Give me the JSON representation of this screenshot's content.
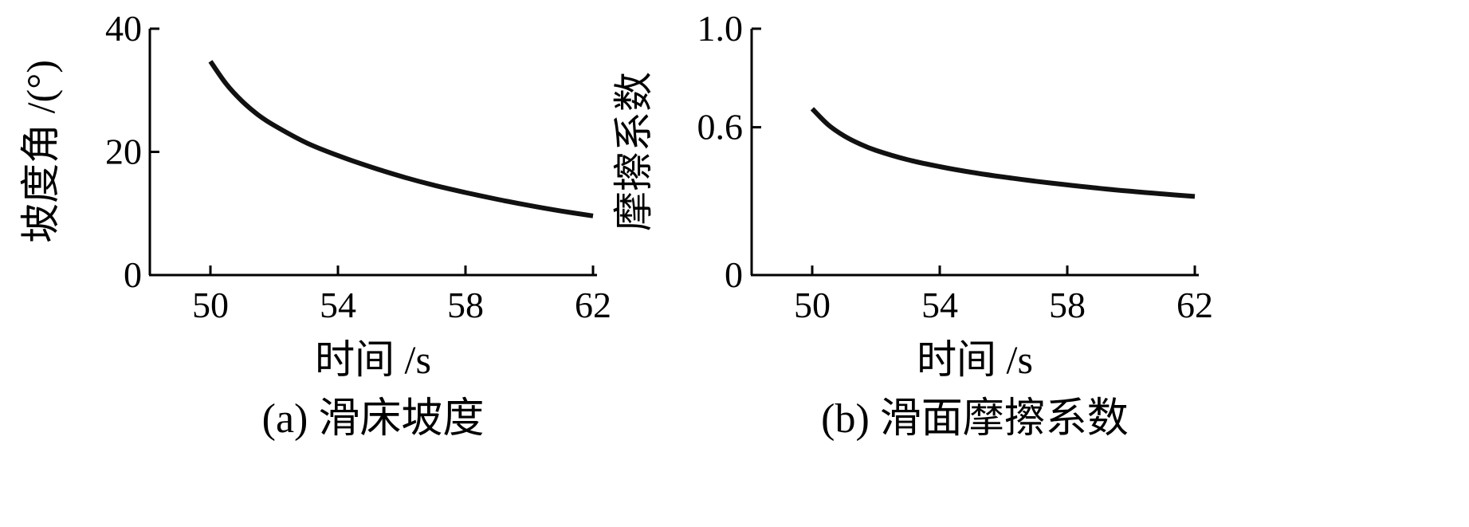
{
  "chart_data": [
    {
      "type": "line",
      "caption": "(a) 滑床坡度",
      "xlabel": "时间 /s",
      "ylabel": "坡度角 /(°)",
      "xticks": [
        "50",
        "54",
        "58",
        "62"
      ],
      "yticks": [
        "0",
        "20",
        "40"
      ],
      "xlim": [
        48.1,
        62.1
      ],
      "ylim": [
        0,
        40
      ],
      "grid": false,
      "series": [
        {
          "x": [
            50,
            50.5,
            51,
            51.5,
            52,
            53,
            54,
            55,
            56,
            57,
            58,
            59,
            60,
            61,
            62
          ],
          "values": [
            34.7,
            31.0,
            28.2,
            26.0,
            24.3,
            21.5,
            19.4,
            17.6,
            16.0,
            14.6,
            13.4,
            12.3,
            11.3,
            10.4,
            9.6
          ]
        }
      ]
    },
    {
      "type": "line",
      "caption": "(b) 滑面摩擦系数",
      "xlabel": "时间 /s",
      "ylabel": "摩擦系数",
      "xticks": [
        "50",
        "54",
        "58",
        "62"
      ],
      "yticks": [
        "0",
        "0.6",
        "1.0"
      ],
      "ytick_values": [
        0,
        0.6,
        1.0
      ],
      "xlim": [
        48.1,
        62.1
      ],
      "ylim": [
        0,
        1.0
      ],
      "grid": false,
      "series": [
        {
          "x": [
            50,
            50.5,
            51,
            51.5,
            52,
            53,
            54,
            55,
            56,
            57,
            58,
            59,
            60,
            61,
            62
          ],
          "values": [
            0.675,
            0.61,
            0.565,
            0.532,
            0.506,
            0.468,
            0.44,
            0.417,
            0.398,
            0.381,
            0.366,
            0.352,
            0.34,
            0.329,
            0.319
          ]
        }
      ]
    }
  ]
}
